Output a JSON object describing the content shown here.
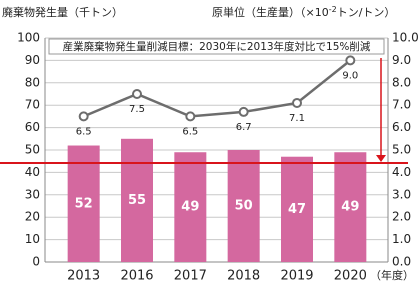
{
  "chart_data": {
    "type": "bar-line",
    "y_label": "廃棄物発生量（千トン）",
    "y2_label": "原単位（生産量）（×10",
    "y2_label_exp": "-2",
    "y2_label_end": "トン/トン）",
    "x_unit": "（年度）",
    "annotation": "産業廃棄物発生量削減目標：2030年に2013年度対比で15%削減",
    "target_line": 44.2,
    "target_color": "#d9141b",
    "categories": [
      "2013",
      "2016",
      "2017",
      "2018",
      "2019",
      "2020"
    ],
    "series": [
      {
        "type": "bar",
        "color": "#d4689f",
        "values": [
          52,
          55,
          49,
          50,
          47,
          49
        ]
      },
      {
        "type": "line",
        "axis": "y2",
        "color": "#6d6d6d",
        "values": [
          6.5,
          7.5,
          6.5,
          6.7,
          7.1,
          9.0
        ],
        "value_labels": [
          "6.5",
          "7.5",
          "6.5",
          "6.7",
          "7.1",
          "9.0"
        ]
      }
    ],
    "ylim": [
      0,
      100
    ],
    "yticks": [
      0,
      10,
      20,
      30,
      40,
      50,
      60,
      70,
      80,
      90,
      100
    ],
    "y2lim": [
      0,
      10
    ],
    "y2ticks": [
      {
        "value": 0,
        "label": "0.0"
      },
      {
        "value": 1,
        "label": "1.0"
      },
      {
        "value": 2,
        "label": "2.0"
      },
      {
        "value": 3,
        "label": "3.0"
      },
      {
        "value": 4,
        "label": "4.0"
      },
      {
        "value": 5,
        "label": "5.0"
      },
      {
        "value": 6,
        "label": "6.0"
      },
      {
        "value": 7,
        "label": "7.0"
      },
      {
        "value": 8,
        "label": "8.0"
      },
      {
        "value": 9,
        "label": "9.0"
      },
      {
        "value": 10,
        "label": "10.0"
      }
    ],
    "grid": true
  }
}
